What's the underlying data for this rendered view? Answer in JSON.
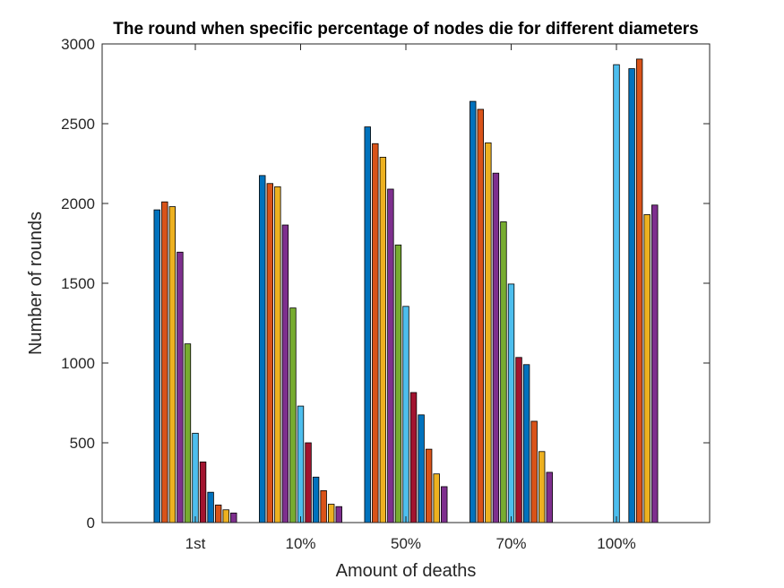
{
  "chart_data": {
    "type": "bar",
    "title": "The round when specific percentage of nodes die for different diameters",
    "xlabel": "Amount of deaths",
    "ylabel": "Number of rounds",
    "categories": [
      "1st",
      "10%",
      "50%",
      "70%",
      "100%"
    ],
    "ylim": [
      0,
      3000
    ],
    "yticks": [
      "0",
      "500",
      "1000",
      "1500",
      "2000",
      "2500",
      "3000"
    ],
    "yticks_values": [
      0,
      500,
      1000,
      1500,
      2000,
      2500,
      3000
    ],
    "grid": false,
    "series": [
      {
        "color": "#0072BD",
        "values": [
          1960,
          2175,
          2480,
          2640,
          0
        ]
      },
      {
        "color": "#D95319",
        "values": [
          2010,
          2125,
          2375,
          2590,
          0
        ]
      },
      {
        "color": "#EDB120",
        "values": [
          1980,
          2105,
          2290,
          2380,
          0
        ]
      },
      {
        "color": "#7E2F8E",
        "values": [
          1695,
          1865,
          2090,
          2190,
          0
        ]
      },
      {
        "color": "#77AC30",
        "values": [
          1120,
          1345,
          1740,
          1885,
          0
        ]
      },
      {
        "color": "#4DBEEE",
        "values": [
          560,
          730,
          1355,
          1495,
          2870
        ]
      },
      {
        "color": "#A2142F",
        "values": [
          380,
          500,
          815,
          1035,
          0
        ]
      },
      {
        "color": "#0072BD",
        "values": [
          190,
          285,
          675,
          990,
          2845
        ]
      },
      {
        "color": "#D95319",
        "values": [
          110,
          200,
          460,
          635,
          2905
        ]
      },
      {
        "color": "#EDB120",
        "values": [
          80,
          115,
          305,
          445,
          1930
        ]
      },
      {
        "color": "#7E2F8E",
        "values": [
          60,
          100,
          225,
          315,
          1990
        ]
      }
    ]
  }
}
